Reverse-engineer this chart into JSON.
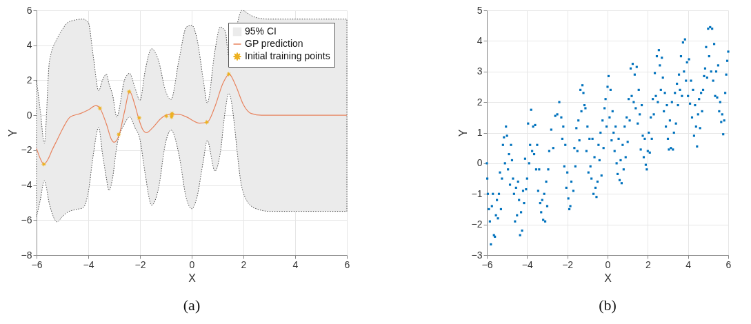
{
  "chart_data": [
    {
      "type": "line",
      "title": "(a)",
      "xlabel": "X",
      "ylabel": "Y",
      "xlim": [
        -6,
        6
      ],
      "ylim": [
        -8,
        6
      ],
      "xticks": [
        -6,
        -4,
        -2,
        0,
        2,
        4,
        6
      ],
      "yticks": [
        -8,
        -6,
        -4,
        -2,
        0,
        2,
        4,
        6
      ],
      "grid": true,
      "legend": "top right",
      "series": [
        {
          "name": "95% CI",
          "type": "area",
          "color": "#ebebeb",
          "line_style": "dotted",
          "x": [
            -6,
            -5.85,
            -5.7,
            -5.5,
            -5.2,
            -5,
            -4.8,
            -4.5,
            -4.2,
            -4,
            -3.8,
            -3.6,
            -3.45,
            -3.3,
            -3.2,
            -3.05,
            -2.9,
            -2.6,
            -2.4,
            -2.2,
            -2,
            -1.8,
            -1.55,
            -1.3,
            -1,
            -0.8,
            -0.5,
            -0.2,
            0,
            0.2,
            0.45,
            0.6,
            0.9,
            1.1,
            1.3,
            1.43,
            1.95,
            2.3,
            2.6,
            3,
            6
          ],
          "values": [
            null,
            null,
            null,
            null,
            null,
            null,
            null,
            null,
            null,
            null,
            null,
            null,
            null,
            null,
            null,
            null,
            null,
            null,
            null,
            null,
            null,
            null,
            null,
            null,
            null,
            null,
            null,
            null,
            null,
            null,
            null,
            null,
            null,
            null,
            null,
            null,
            null,
            null,
            null,
            null,
            null
          ],
          "lower": [
            -5.8,
            -4.8,
            -3.75,
            -5.1,
            -6.1,
            -5.8,
            -5.55,
            -5.4,
            -5.3,
            -4.4,
            -2.2,
            -0.7,
            -2.2,
            -3.6,
            -4.3,
            -3.5,
            -1.8,
            -0.5,
            -0.1,
            -0.7,
            -1.4,
            -3.35,
            -5.15,
            -4.3,
            -1.5,
            -0.85,
            -2.2,
            -4.8,
            -5.35,
            -4.7,
            -2.6,
            -1.45,
            -3.2,
            -2.2,
            0.3,
            1.25,
            -4.2,
            -5.2,
            -5.4,
            -5.5,
            -5.5
          ],
          "upper": [
            2,
            0.2,
            -1.6,
            3.1,
            4.4,
            4.9,
            5.3,
            5.45,
            5.5,
            5.3,
            3.3,
            1.4,
            2.0,
            2.35,
            1.8,
            1.1,
            -0.1,
            2.0,
            2.4,
            1.6,
            0.85,
            2.55,
            3.8,
            3.2,
            1.35,
            0.9,
            3.1,
            5.05,
            5.15,
            4.4,
            2.0,
            0.7,
            3.7,
            5.05,
            4.8,
            3.35,
            6.0,
            5.7,
            5.55,
            5.5,
            5.5
          ]
        },
        {
          "name": "GP prediction",
          "color": "#e8835e",
          "x": [
            -6,
            -5.85,
            -5.72,
            -5.55,
            -5.4,
            -5.2,
            -5,
            -4.7,
            -4.3,
            -4,
            -3.7,
            -3.55,
            -3.3,
            -3.1,
            -3,
            -2.8,
            -2.6,
            -2.4,
            -2.2,
            -2.05,
            -1.9,
            -1.75,
            -1.5,
            -1.2,
            -1,
            -0.8,
            -0.5,
            -0.2,
            0.3,
            0.6,
            0.9,
            1.2,
            1.45,
            1.7,
            2,
            2.3,
            2.7,
            6
          ],
          "values": [
            -1.9,
            -2.5,
            -2.8,
            -2.5,
            -2.0,
            -1.4,
            -0.8,
            -0.1,
            0.1,
            0.3,
            0.55,
            0.4,
            -0.5,
            -1.4,
            -1.55,
            -1.1,
            0.2,
            1.35,
            0.6,
            -0.2,
            -0.8,
            -1.0,
            -0.7,
            -0.2,
            0,
            0.05,
            0.05,
            -0.1,
            -0.45,
            -0.4,
            0.5,
            1.8,
            2.35,
            1.7,
            0.6,
            0.1,
            0,
            0
          ]
        },
        {
          "name": "Initial training points",
          "type": "scatter",
          "marker": "star",
          "color": "#edb120",
          "x": [
            -5.72,
            -3.55,
            -2.82,
            -2.42,
            -2.03,
            -0.98,
            -0.78,
            -0.76,
            -0.77,
            0.58,
            1.43
          ],
          "values": [
            -2.8,
            0.4,
            -1.1,
            1.35,
            -0.15,
            -0.05,
            -0.1,
            0.1,
            0.0,
            -0.4,
            2.35
          ]
        }
      ]
    },
    {
      "type": "scatter",
      "title": "(b)",
      "xlabel": "X",
      "ylabel": "Y",
      "xlim": [
        -6,
        6
      ],
      "ylim": [
        -3,
        5
      ],
      "xticks": [
        -6,
        -4,
        -2,
        0,
        2,
        4,
        6
      ],
      "yticks": [
        -3,
        -2,
        -1,
        0,
        1,
        2,
        3,
        4,
        5
      ],
      "grid": true,
      "series": [
        {
          "marker": "square",
          "color": "#0072bd",
          "x": [
            -6,
            -5.98,
            -5.95,
            -5.9,
            -5.85,
            -5.8,
            -5.75,
            -5.7,
            -5.65,
            -5.6,
            -5.55,
            -5.5,
            -5.45,
            -5.4,
            -5.35,
            -5.3,
            -5.25,
            -5.2,
            -5.15,
            -5.1,
            -5.05,
            -5,
            -4.95,
            -4.9,
            -4.85,
            -4.8,
            -4.75,
            -4.7,
            -4.65,
            -4.6,
            -4.55,
            -4.5,
            -4.45,
            -4.4,
            -4.35,
            -4.3,
            -4.25,
            -4.2,
            -4.15,
            -4.1,
            -4.05,
            -4,
            -3.95,
            -3.9,
            -3.85,
            -3.8,
            -3.75,
            -3.7,
            -3.65,
            -3.6,
            -3.55,
            -3.5,
            -3.45,
            -3.4,
            -3.35,
            -3.3,
            -3.25,
            -3.2,
            -3.15,
            -3.1,
            -3.05,
            -3,
            -2.95,
            -2.9,
            -2.8,
            -2.7,
            -2.6,
            -2.5,
            -2.4,
            -2.3,
            -2.25,
            -2.2,
            -2.15,
            -2.1,
            -2.05,
            -2,
            -1.95,
            -1.9,
            -1.85,
            -1.8,
            -1.7,
            -1.65,
            -1.6,
            -1.55,
            -1.5,
            -1.45,
            -1.4,
            -1.35,
            -1.3,
            -1.25,
            -1.2,
            -1.15,
            -1.1,
            -1.05,
            -1,
            -0.95,
            -0.9,
            -0.85,
            -0.8,
            -0.75,
            -0.7,
            -0.65,
            -0.6,
            -0.55,
            -0.5,
            -0.45,
            -0.4,
            -0.35,
            -0.3,
            -0.25,
            -0.2,
            -0.15,
            -0.1,
            -0.05,
            0,
            0.05,
            0.1,
            0.15,
            0.2,
            0.25,
            0.3,
            0.35,
            0.4,
            0.45,
            0.5,
            0.55,
            0.6,
            0.65,
            0.7,
            0.75,
            0.8,
            0.85,
            0.9,
            0.95,
            1,
            1.05,
            1.1,
            1.15,
            1.2,
            1.25,
            1.3,
            1.35,
            1.4,
            1.45,
            1.5,
            1.55,
            1.6,
            1.65,
            1.7,
            1.75,
            1.8,
            1.85,
            1.9,
            1.95,
            2,
            2.05,
            2.1,
            2.15,
            2.2,
            2.25,
            2.3,
            2.35,
            2.4,
            2.45,
            2.5,
            2.55,
            2.6,
            2.65,
            2.7,
            2.75,
            2.8,
            2.85,
            2.9,
            2.95,
            3,
            3.05,
            3.1,
            3.15,
            3.2,
            3.25,
            3.3,
            3.35,
            3.4,
            3.45,
            3.5,
            3.55,
            3.6,
            3.65,
            3.7,
            3.75,
            3.8,
            3.85,
            3.9,
            3.95,
            4,
            4.05,
            4.1,
            4.15,
            4.2,
            4.25,
            4.3,
            4.35,
            4.4,
            4.45,
            4.5,
            4.55,
            4.6,
            4.65,
            4.7,
            4.75,
            4.8,
            4.85,
            4.9,
            4.95,
            5,
            5.05,
            5.1,
            5.15,
            5.2,
            5.25,
            5.3,
            5.35,
            5.4,
            5.45,
            5.5,
            5.55,
            5.6,
            5.65,
            5.7,
            5.75,
            5.8,
            5.85,
            5.9,
            5.95,
            6
          ],
          "values": [
            0,
            -0.5,
            -1.0,
            -1.5,
            -1.9,
            -2.65,
            -1.4,
            -1.0,
            -2.35,
            -2.4,
            -1.7,
            -1.2,
            -1.8,
            -1.0,
            -0.3,
            -1.5,
            -0.5,
            0.6,
            0.85,
            0,
            1.2,
            0.9,
            -0.2,
            0.3,
            -0.7,
            0.6,
            0.1,
            -0.5,
            -1.0,
            -1.9,
            -0.8,
            -1.7,
            -0.6,
            -1.2,
            -2.35,
            -1.6,
            -2.2,
            -0.9,
            -1.3,
            0.15,
            -0.85,
            -0.5,
            1.3,
            0.0,
            0.6,
            1.75,
            0.4,
            1.2,
            0.3,
            1.25,
            -0.2,
            0.6,
            -0.9,
            -0.2,
            -1.3,
            -1.6,
            -1.2,
            -1.85,
            -1.0,
            -1.9,
            -0.6,
            -1.4,
            -0.2,
            0.4,
            1.1,
            0.5,
            1.55,
            1.6,
            2.0,
            1.5,
            0.8,
            1.2,
            -0.1,
            0.6,
            -0.8,
            -0.3,
            -1.15,
            -1.5,
            -1.4,
            -0.6,
            -0.9,
            0.5,
            -0.1,
            1.15,
            0.4,
            1.4,
            0.75,
            2.4,
            1.7,
            2.55,
            2.3,
            1.9,
            1.8,
            0.4,
            1.2,
            -0.3,
            0.8,
            -0.1,
            -0.5,
            0.8,
            -1.0,
            0.2,
            -0.8,
            -1.1,
            -0.6,
            0.6,
            0.1,
            1.0,
            -0.4,
            1.4,
            0.5,
            1.8,
            2.1,
            1.2,
            2.5,
            2.85,
            1.5,
            2.4,
            0.75,
            1.7,
            1.0,
            0.4,
            1.2,
            0.0,
            -0.35,
            0.8,
            -0.55,
            0.1,
            -0.65,
            0.6,
            -0.2,
            1.2,
            0.2,
            1.5,
            0.7,
            2.1,
            1.4,
            3.1,
            2.2,
            3.25,
            2.0,
            2.9,
            1.8,
            3.15,
            1.3,
            2.4,
            1.6,
            0.45,
            1.9,
            0.9,
            0.2,
            0.8,
            -0.05,
            -0.2,
            0.4,
            1.0,
            0.35,
            1.5,
            0.8,
            2.1,
            1.6,
            2.95,
            2.2,
            3.5,
            2.0,
            3.7,
            3.2,
            2.4,
            3.45,
            2.8,
            1.7,
            2.3,
            1.2,
            1.9,
            0.8,
            0.45,
            1.4,
            0.5,
            2.0,
            0.45,
            1.0,
            2.3,
            1.3,
            2.6,
            1.9,
            2.9,
            2.4,
            3.5,
            2.2,
            3.95,
            3.0,
            4.05,
            2.7,
            3.3,
            2.2,
            3.4,
            1.95,
            2.7,
            1.5,
            2.4,
            0.9,
            1.9,
            1.2,
            0.55,
            1.6,
            2.1,
            1.15,
            2.3,
            1.7,
            2.4,
            2.85,
            3.1,
            3.8,
            2.8,
            4.4,
            3.5,
            4.45,
            3.0,
            4.4,
            2.7,
            3.9,
            2.2,
            3.0,
            2.15,
            3.2,
            1.7,
            2.0,
            1.35,
            1.6,
            0.95,
            1.4,
            2.3,
            2.9,
            3.35,
            3.65
          ]
        }
      ]
    }
  ]
}
